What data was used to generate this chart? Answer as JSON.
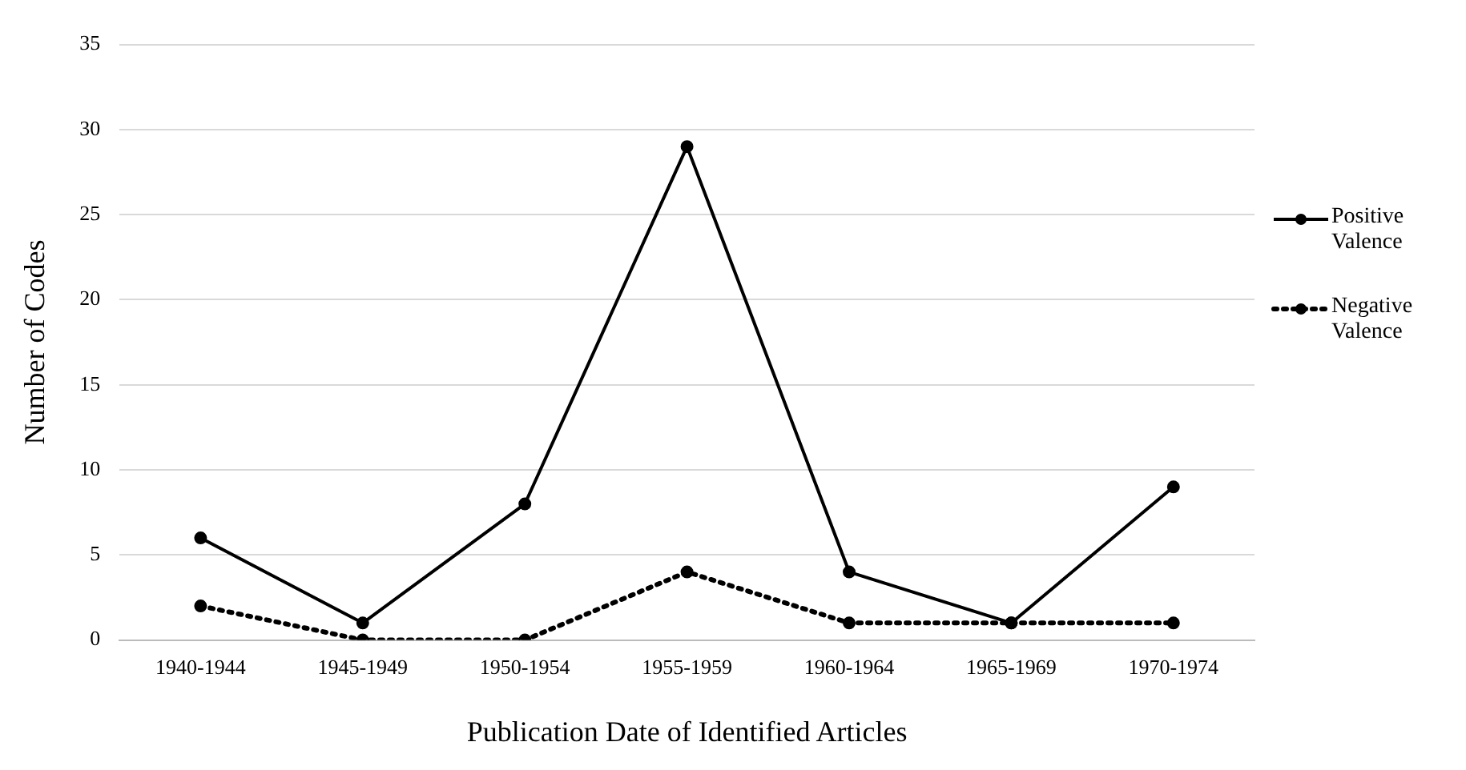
{
  "chart_data": {
    "type": "line",
    "xlabel": "Publication Date of Identified Articles",
    "ylabel": "Number of Codes",
    "categories": [
      "1940-1944",
      "1945-1949",
      "1950-1954",
      "1955-1959",
      "1960-1964",
      "1965-1969",
      "1970-1974"
    ],
    "series": [
      {
        "name": "Positive Valence",
        "color": "#000000",
        "line_style": "solid",
        "values": [
          6,
          1,
          8,
          29,
          4,
          1,
          9
        ]
      },
      {
        "name": "Negative Valence",
        "color": "#000000",
        "line_style": "dotted",
        "values": [
          2,
          0,
          0,
          4,
          1,
          1,
          1
        ]
      }
    ],
    "ylim": [
      0,
      35
    ],
    "yticks": [
      0,
      5,
      10,
      15,
      20,
      25,
      30,
      35
    ],
    "grid": "y",
    "legend": "right",
    "marker": "circle"
  }
}
